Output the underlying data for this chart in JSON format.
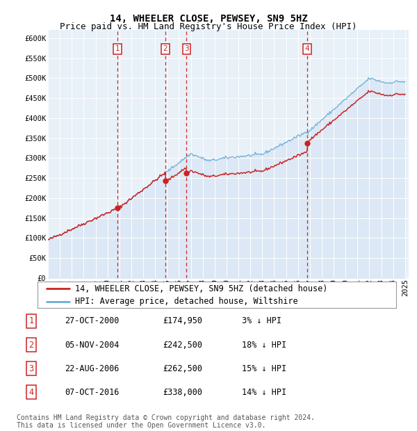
{
  "title": "14, WHEELER CLOSE, PEWSEY, SN9 5HZ",
  "subtitle": "Price paid vs. HM Land Registry's House Price Index (HPI)",
  "legend_line1": "14, WHEELER CLOSE, PEWSEY, SN9 5HZ (detached house)",
  "legend_line2": "HPI: Average price, detached house, Wiltshire",
  "footnote1": "Contains HM Land Registry data © Crown copyright and database right 2024.",
  "footnote2": "This data is licensed under the Open Government Licence v3.0.",
  "sale_prices": [
    174950,
    242500,
    262500,
    338000
  ],
  "sale_labels": [
    "1",
    "2",
    "3",
    "4"
  ],
  "sale_dates_str": [
    "27-OCT-2000",
    "05-NOV-2004",
    "22-AUG-2006",
    "07-OCT-2016"
  ],
  "sale_pct_str": [
    "3% ↓ HPI",
    "18% ↓ HPI",
    "15% ↓ HPI",
    "14% ↓ HPI"
  ],
  "sale_price_str": [
    "£174,950",
    "£242,500",
    "£262,500",
    "£338,000"
  ],
  "ylim": [
    0,
    620000
  ],
  "yticks": [
    0,
    50000,
    100000,
    150000,
    200000,
    250000,
    300000,
    350000,
    400000,
    450000,
    500000,
    550000,
    600000
  ],
  "hpi_fill_color": "#dce8f5",
  "hpi_line_color": "#6baed6",
  "sale_color": "#cc2222",
  "vline_color": "#cc0000",
  "plot_bg": "#e8f0f8",
  "label_box_color": "#cc2222",
  "grid_color": "#ffffff",
  "title_fontsize": 10,
  "subtitle_fontsize": 9,
  "tick_fontsize": 7.5,
  "legend_fontsize": 8.5,
  "table_fontsize": 8.5,
  "footnote_fontsize": 7
}
